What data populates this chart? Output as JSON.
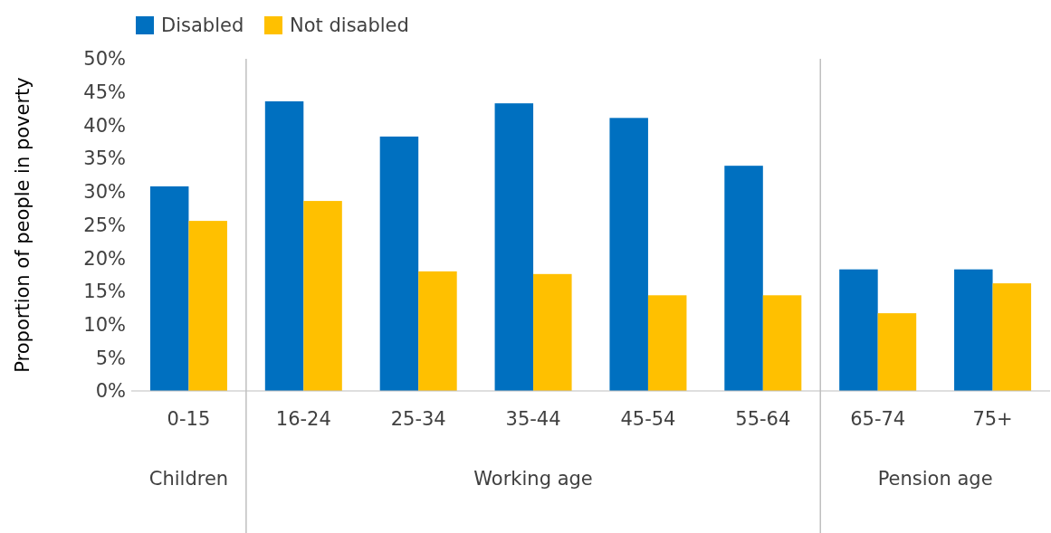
{
  "chart_data": {
    "type": "bar",
    "ylabel": "Proportion of people in poverty",
    "categories": [
      "0-15",
      "16-24",
      "25-34",
      "35-44",
      "45-54",
      "55-64",
      "65-74",
      "75+"
    ],
    "series": [
      {
        "name": "Disabled",
        "color": "#0070c0",
        "values": [
          30.8,
          43.6,
          38.3,
          43.3,
          41.1,
          33.9,
          18.3,
          18.3
        ]
      },
      {
        "name": "Not disabled",
        "color": "#ffc000",
        "values": [
          25.6,
          28.6,
          18.0,
          17.6,
          14.4,
          14.4,
          11.7,
          16.2
        ]
      }
    ],
    "ylim": [
      0,
      50
    ],
    "yticks": [
      {
        "value": 0,
        "label": "0%"
      },
      {
        "value": 5,
        "label": "5%"
      },
      {
        "value": 10,
        "label": "10%"
      },
      {
        "value": 15,
        "label": "15%"
      },
      {
        "value": 20,
        "label": "20%"
      },
      {
        "value": 25,
        "label": "25%"
      },
      {
        "value": 30,
        "label": "30%"
      },
      {
        "value": 35,
        "label": "35%"
      },
      {
        "value": 40,
        "label": "40%"
      },
      {
        "value": 45,
        "label": "45%"
      },
      {
        "value": 50,
        "label": "50%"
      }
    ],
    "annotations": [
      "Children",
      "Working age",
      "Pension age"
    ],
    "legend": "top left"
  }
}
